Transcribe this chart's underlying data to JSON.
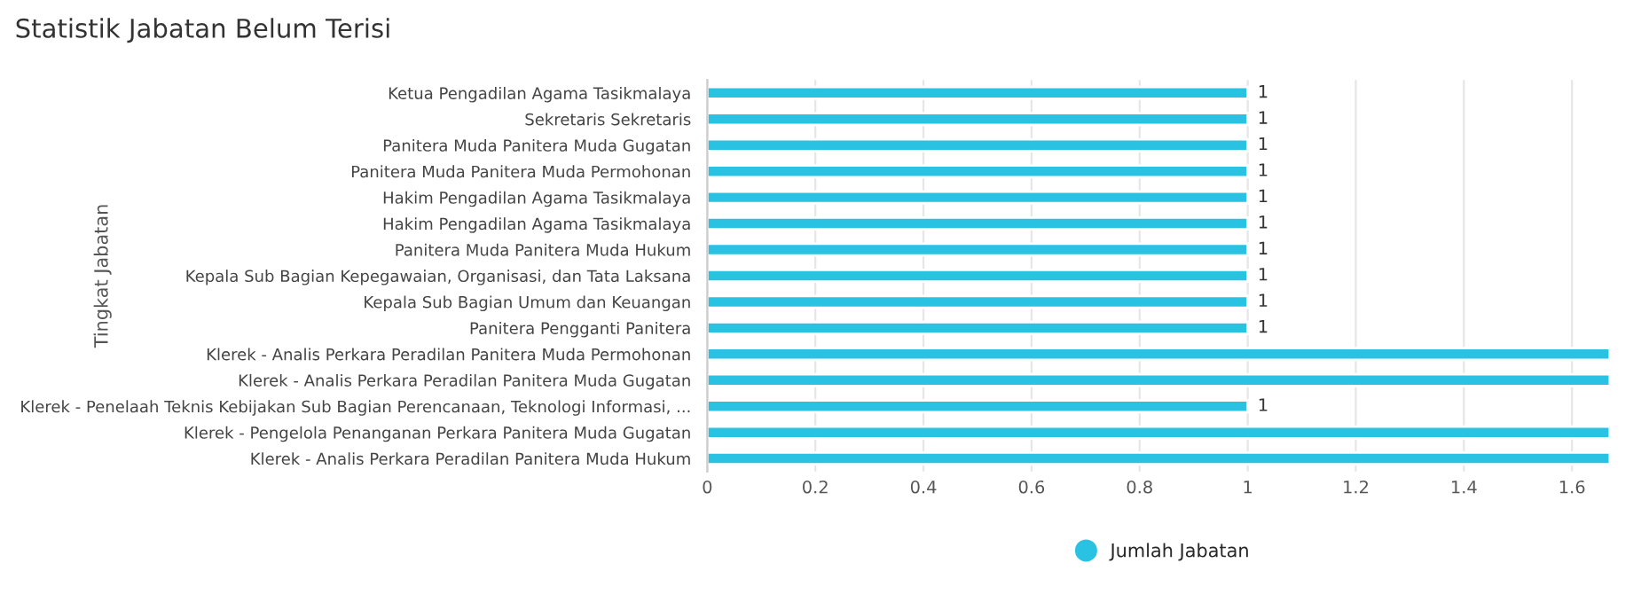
{
  "chart_data": {
    "type": "bar",
    "orientation": "horizontal",
    "title": "Statistik Jabatan Belum Terisi",
    "ylabel": "Tingkat Jabatan",
    "categories": [
      "Ketua Pengadilan Agama Tasikmalaya",
      "Sekretaris Sekretaris",
      "Panitera Muda Panitera Muda Gugatan",
      "Panitera Muda Panitera Muda Permohonan",
      "Hakim Pengadilan Agama Tasikmalaya",
      "Hakim Pengadilan Agama Tasikmalaya",
      "Panitera Muda Panitera Muda Hukum",
      "Kepala Sub Bagian Kepegawaian, Organisasi, dan Tata Laksana",
      "Kepala Sub Bagian Umum dan Keuangan",
      "Panitera Pengganti Panitera",
      "Klerek - Analis Perkara Peradilan Panitera Muda Permohonan",
      "Klerek - Analis Perkara Peradilan Panitera Muda Gugatan",
      "Klerek - Penelaah Teknis Kebijakan Sub Bagian Perencanaan, Teknologi Informasi, ...",
      "Klerek - Pengelola Penanganan Perkara Panitera Muda Gugatan",
      "Klerek - Analis Perkara Peradilan Panitera Muda Hukum"
    ],
    "series": [
      {
        "name": "Jumlah Jabatan",
        "color": "#29c2e3",
        "values": [
          1,
          1,
          1,
          1,
          1,
          1,
          1,
          1,
          1,
          1,
          1.67,
          1.67,
          1,
          1.67,
          1.67
        ],
        "value_labels": [
          "1",
          "1",
          "1",
          "1",
          "1",
          "1",
          "1",
          "1",
          "1",
          "1",
          null,
          null,
          "1",
          null,
          null
        ]
      }
    ],
    "xlim": [
      0,
      1.67
    ],
    "xticks": [
      0,
      0.2,
      0.4,
      0.6,
      0.8,
      1,
      1.2,
      1.4,
      1.6
    ],
    "grid": "x",
    "legend": "bottom",
    "marker": "circle"
  }
}
